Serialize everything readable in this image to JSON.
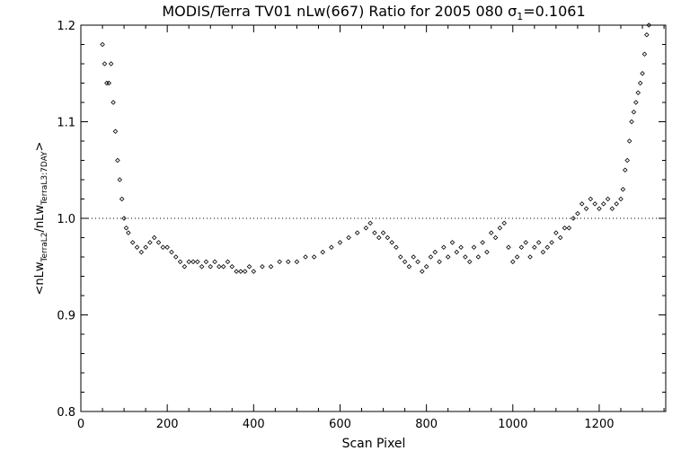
{
  "chart_data": {
    "type": "scatter",
    "title_main": "MODIS/Terra TV01 nLw(667) Ratio for 2005 080 ",
    "title_sigma": "σ",
    "title_sigma_sub": "1",
    "title_value": "=0.1061",
    "xlabel": "Scan Pixel",
    "ylabel_parts": {
      "open": "<nLw",
      "sub1": "TerraL2",
      "mid": "/nLw",
      "sub2": "TerraL3:7DAY",
      "close": ">"
    },
    "xlim": [
      0,
      1354
    ],
    "ylim": [
      0.8,
      1.2
    ],
    "xticks": [
      0,
      200,
      400,
      600,
      800,
      1000,
      1200
    ],
    "xtick_labels": [
      "0",
      "200",
      "400",
      "600",
      "800",
      "1000",
      "1200"
    ],
    "yticks": [
      0.8,
      0.9,
      1.0,
      1.1,
      1.2
    ],
    "ytick_labels": [
      "0.8",
      "0.9",
      "1.0",
      "1.1",
      "1.2"
    ],
    "reference_line": {
      "y": 1.0,
      "style": "dotted"
    },
    "marker": "diamond",
    "grid": false,
    "legend": "none",
    "x": [
      50,
      55,
      60,
      65,
      70,
      75,
      80,
      85,
      90,
      95,
      100,
      105,
      110,
      120,
      130,
      140,
      150,
      160,
      170,
      180,
      190,
      200,
      210,
      220,
      230,
      240,
      250,
      260,
      270,
      280,
      290,
      300,
      310,
      320,
      330,
      340,
      350,
      360,
      370,
      380,
      390,
      400,
      420,
      440,
      460,
      480,
      500,
      520,
      540,
      560,
      580,
      600,
      620,
      640,
      660,
      670,
      680,
      690,
      700,
      710,
      720,
      730,
      740,
      750,
      760,
      770,
      780,
      790,
      800,
      810,
      820,
      830,
      840,
      850,
      860,
      870,
      880,
      890,
      900,
      910,
      920,
      930,
      940,
      950,
      960,
      970,
      980,
      990,
      1000,
      1010,
      1020,
      1030,
      1040,
      1050,
      1060,
      1070,
      1080,
      1090,
      1100,
      1110,
      1120,
      1130,
      1140,
      1150,
      1160,
      1170,
      1180,
      1190,
      1200,
      1210,
      1220,
      1230,
      1240,
      1250,
      1255,
      1260,
      1265,
      1270,
      1275,
      1280,
      1285,
      1290,
      1295,
      1300,
      1305,
      1310,
      1315
    ],
    "y": [
      1.18,
      1.16,
      1.14,
      1.14,
      1.16,
      1.12,
      1.09,
      1.06,
      1.04,
      1.02,
      1.0,
      0.99,
      0.985,
      0.975,
      0.97,
      0.965,
      0.97,
      0.975,
      0.98,
      0.975,
      0.97,
      0.97,
      0.965,
      0.96,
      0.955,
      0.95,
      0.955,
      0.955,
      0.955,
      0.95,
      0.955,
      0.95,
      0.955,
      0.95,
      0.95,
      0.955,
      0.95,
      0.945,
      0.945,
      0.945,
      0.95,
      0.945,
      0.95,
      0.95,
      0.955,
      0.955,
      0.955,
      0.96,
      0.96,
      0.965,
      0.97,
      0.975,
      0.98,
      0.985,
      0.99,
      0.995,
      0.985,
      0.98,
      0.985,
      0.98,
      0.975,
      0.97,
      0.96,
      0.955,
      0.95,
      0.96,
      0.955,
      0.945,
      0.95,
      0.96,
      0.965,
      0.955,
      0.97,
      0.96,
      0.975,
      0.965,
      0.97,
      0.96,
      0.955,
      0.97,
      0.96,
      0.975,
      0.965,
      0.985,
      0.98,
      0.99,
      0.995,
      0.97,
      0.955,
      0.96,
      0.97,
      0.975,
      0.96,
      0.97,
      0.975,
      0.965,
      0.97,
      0.975,
      0.985,
      0.98,
      0.99,
      0.99,
      1.0,
      1.005,
      1.015,
      1.01,
      1.02,
      1.015,
      1.01,
      1.015,
      1.02,
      1.01,
      1.015,
      1.02,
      1.03,
      1.05,
      1.06,
      1.08,
      1.1,
      1.11,
      1.12,
      1.13,
      1.14,
      1.15,
      1.17,
      1.19,
      1.2
    ]
  }
}
